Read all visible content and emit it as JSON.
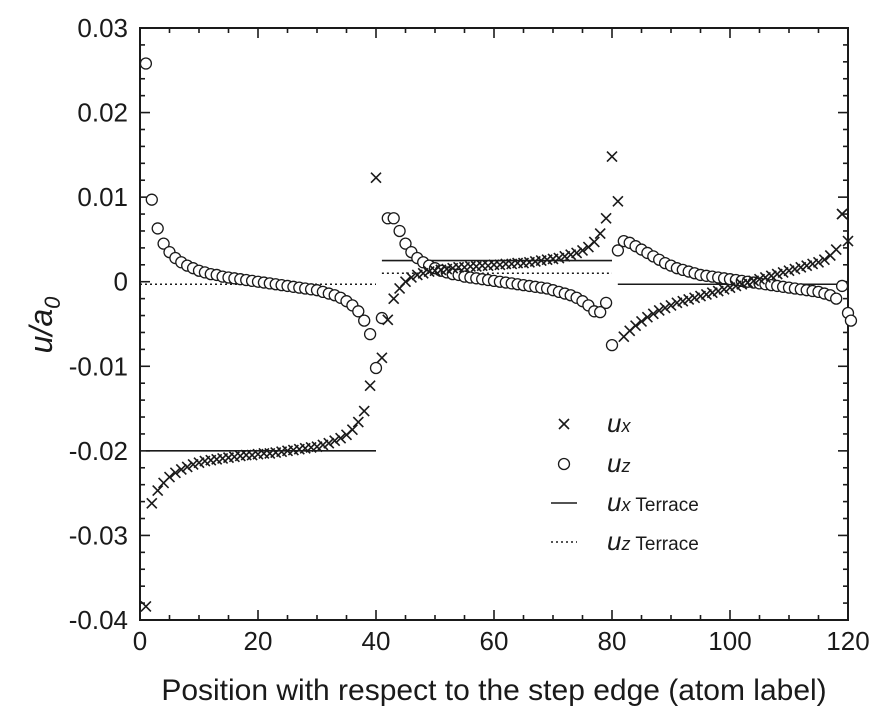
{
  "chart_data": {
    "type": "scatter",
    "xlabel": "Position with respect to the step edge (atom label)",
    "ylabel": "u/a0",
    "ylabel_parts": {
      "main": "u/a",
      "sub": "0"
    },
    "xlim": [
      0,
      120
    ],
    "ylim": [
      -0.04,
      0.03
    ],
    "x_ticks": [
      0,
      20,
      40,
      60,
      80,
      100,
      120
    ],
    "x_tick_labels": [
      "0",
      "20",
      "40",
      "60",
      "80",
      "100",
      "120"
    ],
    "y_ticks": [
      -0.04,
      -0.03,
      -0.02,
      -0.01,
      0,
      0.01,
      0.02,
      0.03
    ],
    "y_tick_labels": [
      "-0.04",
      "-0.03",
      "-0.02",
      "-0.01",
      "0",
      "0.01",
      "0.02",
      "0.03"
    ],
    "grid": false,
    "legend_position": "lower-right",
    "legend": [
      {
        "symbol": "u",
        "sub": "x",
        "text": ""
      },
      {
        "symbol": "u",
        "sub": "z",
        "text": ""
      },
      {
        "symbol": "u",
        "sub": "x",
        "text": " Terrace"
      },
      {
        "symbol": "u",
        "sub": "z",
        "text": " Terrace"
      }
    ],
    "ux_terrace_segments": [
      {
        "x": [
          1,
          40
        ],
        "y": -0.02
      },
      {
        "x": [
          41,
          80
        ],
        "y": 0.0025
      },
      {
        "x": [
          81,
          120
        ],
        "y": -0.0003
      }
    ],
    "uz_terrace_segments": [
      {
        "x": [
          0,
          40
        ],
        "y": -0.0003
      },
      {
        "x": [
          41,
          80
        ],
        "y": 0.001
      },
      {
        "x": [
          81,
          120
        ],
        "y": -0.0003
      }
    ],
    "series": [
      {
        "name": "ux",
        "marker": "x",
        "x": [
          1,
          2,
          3,
          4,
          5,
          6,
          7,
          8,
          9,
          10,
          11,
          12,
          13,
          14,
          15,
          16,
          17,
          18,
          19,
          20,
          21,
          22,
          23,
          24,
          25,
          26,
          27,
          28,
          29,
          30,
          31,
          32,
          33,
          34,
          35,
          36,
          37,
          38,
          39,
          40,
          41,
          42,
          43,
          44,
          45,
          46,
          47,
          48,
          49,
          50,
          51,
          52,
          53,
          54,
          55,
          56,
          57,
          58,
          59,
          60,
          61,
          62,
          63,
          64,
          65,
          66,
          67,
          68,
          69,
          70,
          71,
          72,
          73,
          74,
          75,
          76,
          77,
          78,
          79,
          80,
          81,
          82,
          83,
          84,
          85,
          86,
          87,
          88,
          89,
          90,
          91,
          92,
          93,
          94,
          95,
          96,
          97,
          98,
          99,
          100,
          101,
          102,
          103,
          104,
          105,
          106,
          107,
          108,
          109,
          110,
          111,
          112,
          113,
          114,
          115,
          116,
          117,
          118,
          119,
          120
        ],
        "y": [
          -0.0384,
          -0.0262,
          -0.0247,
          -0.0238,
          -0.0231,
          -0.0226,
          -0.0222,
          -0.0219,
          -0.0216,
          -0.0214,
          -0.0212,
          -0.0211,
          -0.021,
          -0.0209,
          -0.0208,
          -0.0207,
          -0.0206,
          -0.0205,
          -0.0205,
          -0.0204,
          -0.0203,
          -0.0203,
          -0.0202,
          -0.0201,
          -0.02,
          -0.0199,
          -0.0198,
          -0.0197,
          -0.0196,
          -0.0195,
          -0.0193,
          -0.0191,
          -0.0188,
          -0.0185,
          -0.0181,
          -0.0175,
          -0.0166,
          -0.0153,
          -0.0123,
          0.0123,
          -0.009,
          -0.0045,
          -0.002,
          -0.0008,
          0.0,
          0.0005,
          0.0008,
          0.001,
          0.0012,
          0.0013,
          0.0014,
          0.0015,
          0.0016,
          0.0017,
          0.0017,
          0.0018,
          0.0018,
          0.0019,
          0.0019,
          0.002,
          0.002,
          0.0021,
          0.0021,
          0.0022,
          0.0022,
          0.0023,
          0.0024,
          0.0025,
          0.0026,
          0.0027,
          0.0028,
          0.003,
          0.0032,
          0.0034,
          0.0037,
          0.0041,
          0.0047,
          0.0057,
          0.0075,
          0.0148,
          0.0095,
          -0.0065,
          -0.0058,
          -0.0052,
          -0.0047,
          -0.0042,
          -0.0038,
          -0.0034,
          -0.0031,
          -0.0028,
          -0.0025,
          -0.0023,
          -0.0021,
          -0.0019,
          -0.0017,
          -0.0015,
          -0.0013,
          -0.0011,
          -0.0009,
          -0.0007,
          -0.0005,
          -0.0003,
          -0.0001,
          0.0001,
          0.0003,
          0.0005,
          0.0007,
          0.0009,
          0.0011,
          0.0013,
          0.0015,
          0.0017,
          0.0019,
          0.0021,
          0.0023,
          0.0026,
          0.0031,
          0.0038,
          0.008,
          0.0048
        ],
        "extra_points": [
          {
            "x": 119,
            "y": 0.008
          }
        ]
      },
      {
        "name": "uz",
        "marker": "circle",
        "x": [
          1,
          2,
          3,
          4,
          5,
          6,
          7,
          8,
          9,
          10,
          11,
          12,
          13,
          14,
          15,
          16,
          17,
          18,
          19,
          20,
          21,
          22,
          23,
          24,
          25,
          26,
          27,
          28,
          29,
          30,
          31,
          32,
          33,
          34,
          35,
          36,
          37,
          38,
          39,
          40,
          41,
          42,
          43,
          44,
          45,
          46,
          47,
          48,
          49,
          50,
          51,
          52,
          53,
          54,
          55,
          56,
          57,
          58,
          59,
          60,
          61,
          62,
          63,
          64,
          65,
          66,
          67,
          68,
          69,
          70,
          71,
          72,
          73,
          74,
          75,
          76,
          77,
          78,
          79,
          80,
          81,
          82,
          83,
          84,
          85,
          86,
          87,
          88,
          89,
          90,
          91,
          92,
          93,
          94,
          95,
          96,
          97,
          98,
          99,
          100,
          101,
          102,
          103,
          104,
          105,
          106,
          107,
          108,
          109,
          110,
          111,
          112,
          113,
          114,
          115,
          116,
          117,
          118,
          119,
          120
        ],
        "y": [
          0.0258,
          0.0097,
          0.0063,
          0.0045,
          0.0035,
          0.0028,
          0.0023,
          0.0019,
          0.0016,
          0.0013,
          0.0011,
          0.0009,
          0.0008,
          0.0006,
          0.0005,
          0.0004,
          0.0003,
          0.0002,
          0.0001,
          0.0,
          -0.0001,
          -0.0002,
          -0.0003,
          -0.0004,
          -0.0005,
          -0.0006,
          -0.0007,
          -0.0008,
          -0.0009,
          -0.001,
          -0.0012,
          -0.0014,
          -0.0016,
          -0.0019,
          -0.0023,
          -0.0028,
          -0.0035,
          -0.0046,
          -0.0062,
          -0.0102,
          -0.0043,
          0.0075,
          0.0075,
          0.006,
          0.0045,
          0.0035,
          0.0028,
          0.0023,
          0.0019,
          0.0016,
          0.0013,
          0.0011,
          0.0009,
          0.0008,
          0.0006,
          0.0005,
          0.0004,
          0.0003,
          0.0002,
          0.0001,
          0.0,
          -0.0001,
          -0.0002,
          -0.0003,
          -0.0004,
          -0.0005,
          -0.0006,
          -0.0007,
          -0.0008,
          -0.001,
          -0.0012,
          -0.0014,
          -0.0016,
          -0.0019,
          -0.0023,
          -0.0028,
          -0.0035,
          -0.0036,
          -0.0025,
          -0.0075,
          0.0037,
          0.0048,
          0.0046,
          0.0042,
          0.0038,
          0.0034,
          0.003,
          0.0026,
          0.0022,
          0.0019,
          0.0016,
          0.0014,
          0.0012,
          0.001,
          0.0008,
          0.0007,
          0.0006,
          0.0005,
          0.0004,
          0.0003,
          0.0002,
          0.0001,
          0.0,
          -0.0001,
          -0.0002,
          -0.0003,
          -0.0004,
          -0.0005,
          -0.0006,
          -0.0007,
          -0.0008,
          -0.0009,
          -0.001,
          -0.0011,
          -0.0012,
          -0.0014,
          -0.0016,
          -0.002,
          -0.0005,
          -0.0037
        ],
        "extra_points": [
          {
            "x": 120.5,
            "y": -0.0046
          }
        ]
      }
    ]
  }
}
